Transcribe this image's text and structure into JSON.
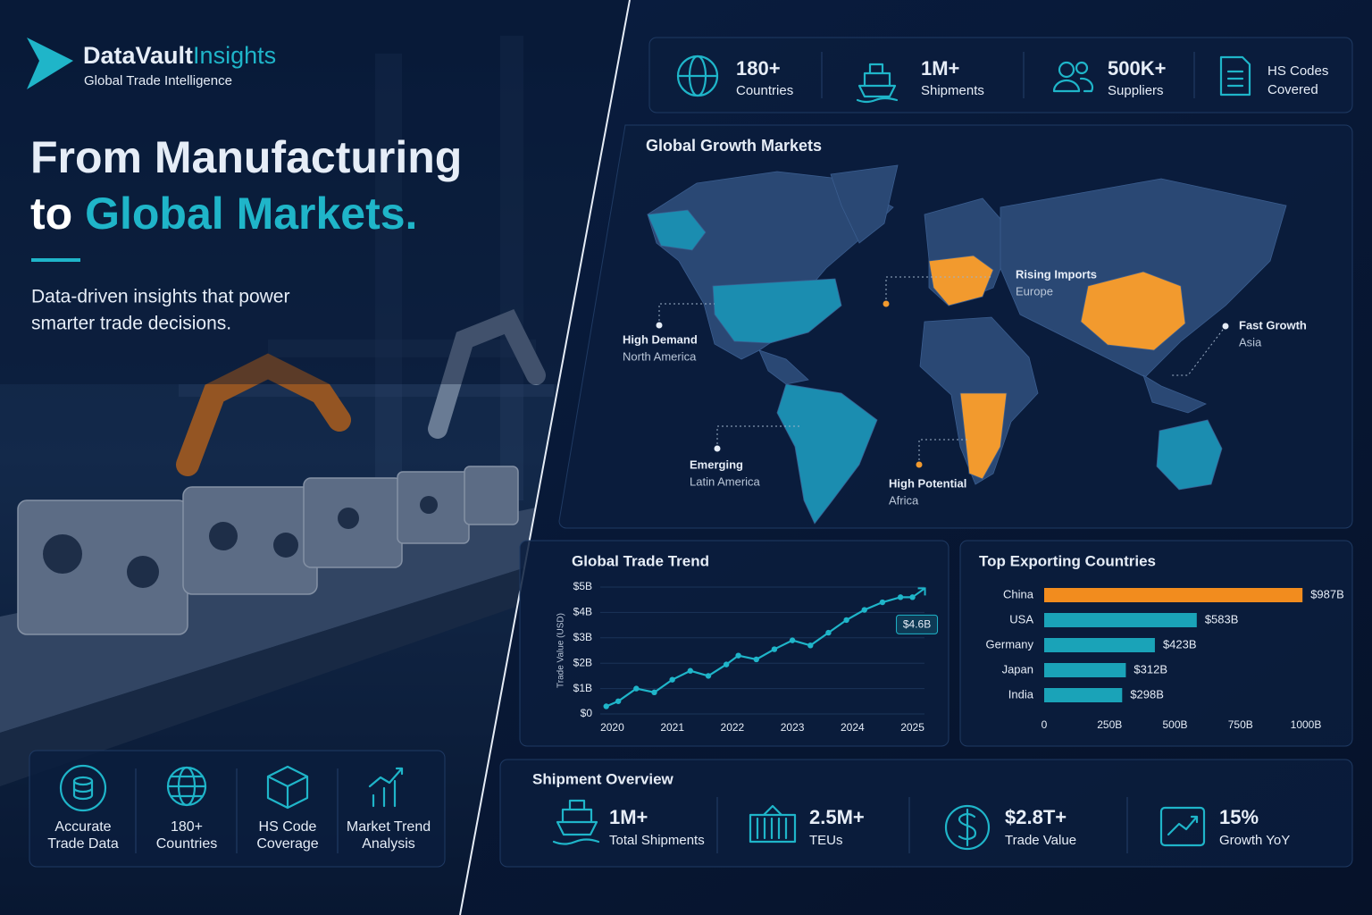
{
  "brand": {
    "name": "DataVault",
    "name_accent": "Insights",
    "tagline": "Global Trade Intelligence"
  },
  "hero": {
    "line1": "From Manufacturing",
    "line2_prefix": "to",
    "line2_accent": "Global Markets.",
    "subtitle_lines": [
      "Data-driven insights that power",
      "smarter trade decisions."
    ]
  },
  "features": [
    {
      "lines": [
        "Accurate",
        "Trade Data"
      ]
    },
    {
      "lines": [
        "180+",
        "Countries"
      ]
    },
    {
      "lines": [
        "HS Code",
        "Coverage"
      ]
    },
    {
      "lines": [
        "Market Trend",
        "Analysis"
      ]
    }
  ],
  "stats": [
    {
      "value": "180+",
      "label": "Countries"
    },
    {
      "value": "1M+",
      "label": "Shipments"
    },
    {
      "value": "500K+",
      "label": "Suppliers"
    },
    {
      "lines": [
        "HS Codes",
        "Covered"
      ]
    }
  ],
  "map": {
    "title": "Global Growth Markets",
    "callouts": [
      {
        "title": "High Demand",
        "region": "North America"
      },
      {
        "title": "Emerging",
        "region": "Latin America"
      },
      {
        "title": "Rising Imports",
        "region": "Europe"
      },
      {
        "title": "High Potential",
        "region": "Africa"
      },
      {
        "title": "Fast Growth",
        "region": "Asia"
      }
    ]
  },
  "shipment": {
    "title": "Shipment Overview",
    "items": [
      {
        "value": "1M+",
        "label": "Total Shipments"
      },
      {
        "value": "2.5M+",
        "label": "TEUs"
      },
      {
        "value": "$2.8T+",
        "label": "Trade Value"
      },
      {
        "value": "15%",
        "label": "Growth YoY"
      }
    ]
  },
  "chart_data": [
    {
      "type": "line",
      "title": "Global Trade Trend",
      "y_label": "Trade Value (USD)",
      "x": [
        2019.9,
        2020.1,
        2020.4,
        2020.7,
        2021.0,
        2021.3,
        2021.6,
        2021.9,
        2022.1,
        2022.4,
        2022.7,
        2023.0,
        2023.3,
        2023.6,
        2023.9,
        2024.2,
        2024.5,
        2024.8,
        2025.0
      ],
      "values": [
        0.3,
        0.5,
        1.0,
        0.85,
        1.35,
        1.7,
        1.5,
        1.95,
        2.3,
        2.15,
        2.55,
        2.9,
        2.7,
        3.2,
        3.7,
        4.1,
        4.4,
        4.6,
        4.6
      ],
      "color": "#1fb5c9",
      "annotation": "$4.6B",
      "xlim": [
        2019.8,
        2025.2
      ],
      "xticks": [
        2020,
        2021,
        2022,
        2023,
        2024,
        2025
      ],
      "ylim": [
        0,
        5.2
      ],
      "yticks": [
        {
          "value": 0,
          "label": "$0"
        },
        {
          "value": 1,
          "label": "$1B"
        },
        {
          "value": 2,
          "label": "$2B"
        },
        {
          "value": 3,
          "label": "$3B"
        },
        {
          "value": 4,
          "label": "$4B"
        },
        {
          "value": 5,
          "label": "$5B"
        }
      ]
    },
    {
      "type": "bar",
      "orientation": "horizontal",
      "title": "Top Exporting Countries",
      "categories": [
        "China",
        "USA",
        "Germany",
        "Japan",
        "India"
      ],
      "values": [
        987,
        583,
        423,
        312,
        298
      ],
      "value_labels": [
        "$987B",
        "$583B",
        "$423B",
        "$312B",
        "$298B"
      ],
      "colors": [
        "#f28c1e",
        "#1aa3b8",
        "#1aa3b8",
        "#1aa3b8",
        "#1aa3b8"
      ],
      "xlim": [
        0,
        1000
      ],
      "xticks": [
        0,
        {
          "value": 250,
          "label": "250B"
        },
        {
          "value": 500,
          "label": "500B"
        },
        {
          "value": 750,
          "label": "750B"
        },
        {
          "value": 1000,
          "label": "1000B"
        }
      ]
    }
  ]
}
